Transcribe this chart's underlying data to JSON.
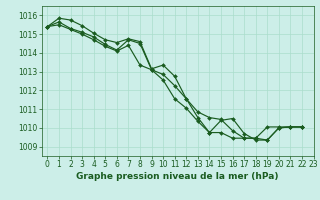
{
  "title": "Graphe pression niveau de la mer (hPa)",
  "bg_color": "#cceee8",
  "grid_color": "#aaddcc",
  "line_color": "#1a5c20",
  "xlim": [
    -0.5,
    23
  ],
  "ylim": [
    1008.5,
    1016.5
  ],
  "yticks": [
    1009,
    1010,
    1011,
    1012,
    1013,
    1014,
    1015,
    1016
  ],
  "xticks": [
    0,
    1,
    2,
    3,
    4,
    5,
    6,
    7,
    8,
    9,
    10,
    11,
    12,
    13,
    14,
    15,
    16,
    17,
    18,
    19,
    20,
    21,
    22,
    23
  ],
  "series": [
    [
      1015.4,
      1015.85,
      1015.75,
      1015.45,
      1015.05,
      1014.7,
      1014.55,
      1014.75,
      1014.6,
      1013.15,
      1013.35,
      1012.75,
      1011.55,
      1010.55,
      1009.75,
      1010.4,
      1010.5,
      1009.7,
      1009.35,
      1009.35,
      1010.0,
      1010.05,
      1010.05
    ],
    [
      1015.4,
      1015.65,
      1015.3,
      1015.1,
      1014.85,
      1014.45,
      1014.15,
      1014.7,
      1014.5,
      1013.1,
      1012.85,
      1012.25,
      1011.55,
      1010.85,
      1010.55,
      1010.45,
      1009.85,
      1009.45,
      1009.45,
      1009.35,
      1010.0,
      1010.05,
      1010.05
    ],
    [
      1015.4,
      1015.5,
      1015.25,
      1015.0,
      1014.7,
      1014.35,
      1014.1,
      1014.4,
      1013.35,
      1013.1,
      1012.55,
      1011.55,
      1011.05,
      1010.35,
      1009.75,
      1009.75,
      1009.45,
      1009.45,
      1009.45,
      1010.05,
      1010.05,
      1010.05,
      1010.05
    ]
  ],
  "marker": "D",
  "markersize": 2.0,
  "linewidth": 0.85,
  "title_fontsize": 6.5,
  "tick_fontsize": 5.5
}
